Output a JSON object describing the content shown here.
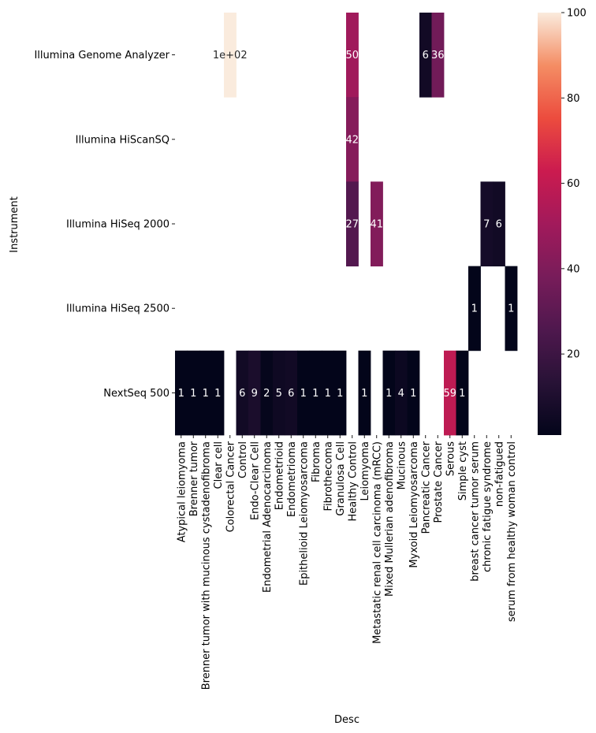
{
  "chart_data": {
    "type": "heatmap",
    "xlabel": "Desc",
    "ylabel": "Instrument",
    "rows": [
      "Illumina Genome Analyzer",
      "Illumina HiScanSQ",
      "Illumina HiSeq 2000",
      "Illumina HiSeq 2500",
      "NextSeq 500"
    ],
    "columns": [
      "Atypical leiomyoma",
      "Brenner tumor",
      "Brenner tumor with mucinous cystadenofibroma",
      "Clear cell",
      "Colorectal Cancer",
      "Control",
      "Endo-Clear Cell",
      "Endometrial Adenocarcinoma",
      "Endometrioid",
      "Endometrioma",
      "Epithelioid Leiomyosarcoma",
      "Fibroma",
      "Fibrothecoma",
      "Granulosa Cell",
      "Healthy Control",
      "Leiomyoma",
      "Metastatic renal cell carcinoma (mRCC)",
      "Mixed Mullerian adenofibroma",
      "Mucinous",
      "Myxoid Leiomyosarcoma",
      "Pancreatic Cancer",
      "Prostate Cancer",
      "Serous",
      "Simple cyst",
      "breast cancer tumor serum",
      "chronic fatigue syndrome",
      "non-fatigued",
      "serum from healthy woman control"
    ],
    "cells": [
      {
        "row": 0,
        "col": 4,
        "value": 100,
        "label": "1e+02"
      },
      {
        "row": 0,
        "col": 14,
        "value": 50,
        "label": "50"
      },
      {
        "row": 0,
        "col": 20,
        "value": 6,
        "label": "6"
      },
      {
        "row": 0,
        "col": 21,
        "value": 36,
        "label": "36"
      },
      {
        "row": 1,
        "col": 14,
        "value": 42,
        "label": "42"
      },
      {
        "row": 2,
        "col": 14,
        "value": 27,
        "label": "27"
      },
      {
        "row": 2,
        "col": 16,
        "value": 41,
        "label": "41"
      },
      {
        "row": 2,
        "col": 25,
        "value": 7,
        "label": "7"
      },
      {
        "row": 2,
        "col": 26,
        "value": 6,
        "label": "6"
      },
      {
        "row": 3,
        "col": 24,
        "value": 1,
        "label": "1"
      },
      {
        "row": 3,
        "col": 27,
        "value": 1,
        "label": "1"
      },
      {
        "row": 4,
        "col": 0,
        "value": 1,
        "label": "1"
      },
      {
        "row": 4,
        "col": 1,
        "value": 1,
        "label": "1"
      },
      {
        "row": 4,
        "col": 2,
        "value": 1,
        "label": "1"
      },
      {
        "row": 4,
        "col": 3,
        "value": 1,
        "label": "1"
      },
      {
        "row": 4,
        "col": 5,
        "value": 6,
        "label": "6"
      },
      {
        "row": 4,
        "col": 6,
        "value": 9,
        "label": "9"
      },
      {
        "row": 4,
        "col": 7,
        "value": 2,
        "label": "2"
      },
      {
        "row": 4,
        "col": 8,
        "value": 5,
        "label": "5"
      },
      {
        "row": 4,
        "col": 9,
        "value": 6,
        "label": "6"
      },
      {
        "row": 4,
        "col": 10,
        "value": 1,
        "label": "1"
      },
      {
        "row": 4,
        "col": 11,
        "value": 1,
        "label": "1"
      },
      {
        "row": 4,
        "col": 12,
        "value": 1,
        "label": "1"
      },
      {
        "row": 4,
        "col": 13,
        "value": 1,
        "label": "1"
      },
      {
        "row": 4,
        "col": 15,
        "value": 1,
        "label": "1"
      },
      {
        "row": 4,
        "col": 17,
        "value": 1,
        "label": "1"
      },
      {
        "row": 4,
        "col": 18,
        "value": 4,
        "label": "4"
      },
      {
        "row": 4,
        "col": 19,
        "value": 1,
        "label": "1"
      },
      {
        "row": 4,
        "col": 22,
        "value": 59,
        "label": "59"
      },
      {
        "row": 4,
        "col": 23,
        "value": 1,
        "label": "1"
      }
    ],
    "colorbar": {
      "colormap": "rocket",
      "range": [
        1,
        100
      ],
      "ticks": [
        20,
        40,
        60,
        80,
        100
      ]
    }
  }
}
